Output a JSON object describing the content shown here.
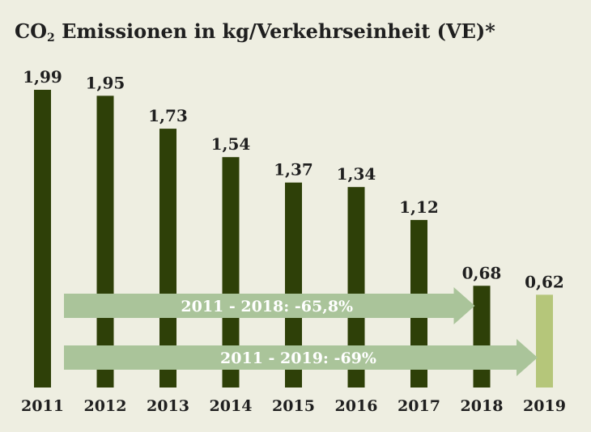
{
  "title": {
    "prefix": "CO",
    "subscript": "2",
    "rest": " Emissionen in kg/Verkehrseinheit (VE)*"
  },
  "colors": {
    "background": "#eeeee1",
    "bar": "#2e4008",
    "bar_highlight": "#b5c67a",
    "arrow": "#aac49a",
    "text": "#1f1f1f"
  },
  "chart_data": {
    "type": "bar",
    "title": "CO2 Emissionen in kg/Verkehrseinheit (VE)*",
    "categories": [
      "2011",
      "2012",
      "2013",
      "2014",
      "2015",
      "2016",
      "2017",
      "2018",
      "2019"
    ],
    "values": [
      1.99,
      1.95,
      1.73,
      1.54,
      1.37,
      1.34,
      1.12,
      0.68,
      0.62
    ],
    "labels": [
      "1,99",
      "1,95",
      "1,73",
      "1,54",
      "1,37",
      "1,34",
      "1,12",
      "0,68",
      "0,62"
    ],
    "highlight_index": 8,
    "ylim": [
      0,
      1.99
    ],
    "grid": false,
    "annotations": [
      {
        "text": "2011 - 2018: -65,8%",
        "from": "2011",
        "to": "2018"
      },
      {
        "text": "2011 - 2019: -69%",
        "from": "2011",
        "to": "2019"
      }
    ]
  }
}
